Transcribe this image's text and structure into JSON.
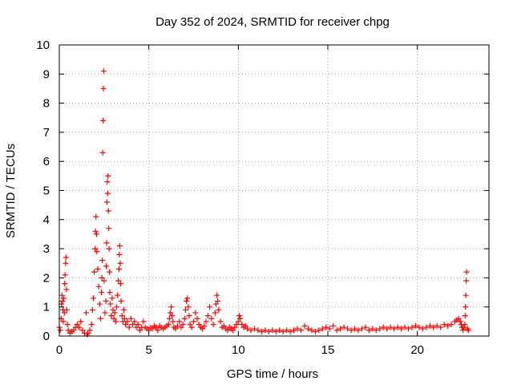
{
  "chart_data": {
    "type": "scatter",
    "title": "Day 352 of 2024, SRMTID for receiver chpg",
    "xlabel": "GPS time / hours",
    "ylabel": "SRMTID / TECUs",
    "xlim": [
      0,
      24
    ],
    "ylim": [
      0,
      10
    ],
    "xticks": [
      0,
      5,
      10,
      15,
      20
    ],
    "yticks": [
      0,
      1,
      2,
      3,
      4,
      5,
      6,
      7,
      8,
      9,
      10
    ],
    "grid": true,
    "legend": "none",
    "series": [
      {
        "name": "SRMTID",
        "marker": "+",
        "color": "#ff0000",
        "points": [
          [
            0.0,
            0.3
          ],
          [
            0.05,
            0.2
          ],
          [
            0.1,
            0.6
          ],
          [
            0.12,
            1.1
          ],
          [
            0.15,
            1.4
          ],
          [
            0.18,
            1.2
          ],
          [
            0.2,
            0.9
          ],
          [
            0.22,
            0.5
          ],
          [
            0.25,
            1.3
          ],
          [
            0.28,
            0.8
          ],
          [
            0.3,
            1.8
          ],
          [
            0.32,
            2.1
          ],
          [
            0.35,
            2.5
          ],
          [
            0.37,
            2.7
          ],
          [
            0.4,
            1.6
          ],
          [
            0.42,
            0.9
          ],
          [
            0.45,
            0.4
          ],
          [
            0.5,
            0.2
          ],
          [
            0.6,
            0.1
          ],
          [
            0.7,
            0.15
          ],
          [
            0.8,
            0.2
          ],
          [
            0.9,
            0.3
          ],
          [
            1.0,
            0.4
          ],
          [
            1.1,
            0.3
          ],
          [
            1.2,
            0.5
          ],
          [
            1.3,
            0.2
          ],
          [
            1.4,
            0.1
          ],
          [
            1.5,
            0.8
          ],
          [
            1.55,
            0.05
          ],
          [
            1.6,
            0.1
          ],
          [
            1.7,
            0.2
          ],
          [
            1.8,
            0.4
          ],
          [
            1.85,
            0.9
          ],
          [
            1.9,
            1.3
          ],
          [
            1.95,
            2.2
          ],
          [
            2.0,
            3.0
          ],
          [
            2.02,
            3.6
          ],
          [
            2.05,
            4.1
          ],
          [
            2.08,
            3.5
          ],
          [
            2.1,
            2.9
          ],
          [
            2.15,
            2.3
          ],
          [
            2.2,
            1.7
          ],
          [
            2.25,
            1.1
          ],
          [
            2.3,
            0.6
          ],
          [
            2.35,
            1.5
          ],
          [
            2.38,
            2.0
          ],
          [
            2.4,
            2.6
          ],
          [
            2.42,
            6.3
          ],
          [
            2.44,
            7.4
          ],
          [
            2.46,
            8.5
          ],
          [
            2.48,
            9.1
          ],
          [
            2.5,
            1.9
          ],
          [
            2.55,
            0.8
          ],
          [
            2.6,
            1.2
          ],
          [
            2.62,
            2.4
          ],
          [
            2.64,
            3.2
          ],
          [
            2.66,
            4.6
          ],
          [
            2.68,
            5.3
          ],
          [
            2.7,
            4.9
          ],
          [
            2.72,
            5.5
          ],
          [
            2.74,
            4.3
          ],
          [
            2.76,
            3.7
          ],
          [
            2.78,
            3.0
          ],
          [
            2.8,
            2.2
          ],
          [
            2.82,
            1.5
          ],
          [
            2.85,
            1.1
          ],
          [
            2.9,
            0.7
          ],
          [
            2.95,
            1.3
          ],
          [
            3.0,
            0.9
          ],
          [
            3.05,
            0.6
          ],
          [
            3.1,
            0.8
          ],
          [
            3.15,
            0.5
          ],
          [
            3.2,
            1.0
          ],
          [
            3.25,
            1.4
          ],
          [
            3.3,
            1.9
          ],
          [
            3.33,
            2.3
          ],
          [
            3.35,
            2.8
          ],
          [
            3.37,
            3.1
          ],
          [
            3.4,
            2.5
          ],
          [
            3.42,
            1.8
          ],
          [
            3.45,
            1.2
          ],
          [
            3.5,
            0.7
          ],
          [
            3.55,
            0.5
          ],
          [
            3.6,
            0.9
          ],
          [
            3.65,
            0.6
          ],
          [
            3.7,
            0.4
          ],
          [
            3.8,
            0.5
          ],
          [
            3.9,
            0.3
          ],
          [
            4.0,
            0.6
          ],
          [
            4.1,
            0.4
          ],
          [
            4.2,
            0.5
          ],
          [
            4.3,
            0.3
          ],
          [
            4.4,
            0.4
          ],
          [
            4.5,
            0.2
          ],
          [
            4.6,
            0.3
          ],
          [
            4.7,
            0.5
          ],
          [
            4.8,
            0.3
          ],
          [
            4.9,
            0.25
          ],
          [
            5.0,
            0.2
          ],
          [
            5.1,
            0.3
          ],
          [
            5.2,
            0.25
          ],
          [
            5.3,
            0.35
          ],
          [
            5.4,
            0.3
          ],
          [
            5.5,
            0.2
          ],
          [
            5.6,
            0.35
          ],
          [
            5.7,
            0.3
          ],
          [
            5.8,
            0.25
          ],
          [
            5.9,
            0.3
          ],
          [
            6.0,
            0.35
          ],
          [
            6.1,
            0.4
          ],
          [
            6.15,
            0.6
          ],
          [
            6.2,
            0.8
          ],
          [
            6.25,
            1.0
          ],
          [
            6.3,
            0.7
          ],
          [
            6.35,
            0.5
          ],
          [
            6.4,
            0.3
          ],
          [
            6.5,
            0.25
          ],
          [
            6.6,
            0.35
          ],
          [
            6.7,
            0.5
          ],
          [
            6.8,
            0.3
          ],
          [
            6.9,
            0.4
          ],
          [
            7.0,
            0.6
          ],
          [
            7.05,
            0.9
          ],
          [
            7.1,
            1.2
          ],
          [
            7.15,
            1.3
          ],
          [
            7.2,
            1.0
          ],
          [
            7.25,
            0.7
          ],
          [
            7.3,
            0.4
          ],
          [
            7.4,
            0.3
          ],
          [
            7.5,
            0.5
          ],
          [
            7.6,
            0.8
          ],
          [
            7.7,
            0.6
          ],
          [
            7.8,
            0.4
          ],
          [
            7.9,
            0.3
          ],
          [
            8.0,
            0.25
          ],
          [
            8.1,
            0.35
          ],
          [
            8.2,
            0.5
          ],
          [
            8.3,
            0.7
          ],
          [
            8.4,
            1.0
          ],
          [
            8.5,
            0.6
          ],
          [
            8.6,
            0.4
          ],
          [
            8.7,
            0.8
          ],
          [
            8.75,
            1.1
          ],
          [
            8.8,
            1.4
          ],
          [
            8.85,
            1.2
          ],
          [
            8.9,
            0.9
          ],
          [
            9.0,
            0.5
          ],
          [
            9.1,
            0.3
          ],
          [
            9.2,
            0.35
          ],
          [
            9.3,
            0.25
          ],
          [
            9.4,
            0.2
          ],
          [
            9.5,
            0.3
          ],
          [
            9.6,
            0.25
          ],
          [
            9.7,
            0.2
          ],
          [
            9.8,
            0.3
          ],
          [
            9.9,
            0.4
          ],
          [
            10.0,
            0.5
          ],
          [
            10.05,
            0.7
          ],
          [
            10.1,
            0.6
          ],
          [
            10.2,
            0.4
          ],
          [
            10.3,
            0.3
          ],
          [
            10.4,
            0.35
          ],
          [
            10.5,
            0.25
          ],
          [
            10.7,
            0.2
          ],
          [
            10.9,
            0.25
          ],
          [
            11.1,
            0.2
          ],
          [
            11.3,
            0.15
          ],
          [
            11.5,
            0.2
          ],
          [
            11.7,
            0.15
          ],
          [
            11.9,
            0.2
          ],
          [
            12.1,
            0.15
          ],
          [
            12.3,
            0.2
          ],
          [
            12.5,
            0.15
          ],
          [
            12.7,
            0.2
          ],
          [
            12.9,
            0.15
          ],
          [
            13.1,
            0.2
          ],
          [
            13.3,
            0.25
          ],
          [
            13.5,
            0.2
          ],
          [
            13.7,
            0.35
          ],
          [
            13.9,
            0.25
          ],
          [
            14.1,
            0.2
          ],
          [
            14.3,
            0.15
          ],
          [
            14.5,
            0.2
          ],
          [
            14.7,
            0.25
          ],
          [
            14.9,
            0.3
          ],
          [
            15.1,
            0.25
          ],
          [
            15.3,
            0.35
          ],
          [
            15.5,
            0.2
          ],
          [
            15.7,
            0.25
          ],
          [
            15.9,
            0.3
          ],
          [
            16.1,
            0.25
          ],
          [
            16.3,
            0.2
          ],
          [
            16.5,
            0.25
          ],
          [
            16.7,
            0.2
          ],
          [
            16.9,
            0.25
          ],
          [
            17.1,
            0.3
          ],
          [
            17.3,
            0.2
          ],
          [
            17.5,
            0.25
          ],
          [
            17.7,
            0.2
          ],
          [
            17.9,
            0.25
          ],
          [
            18.1,
            0.3
          ],
          [
            18.3,
            0.25
          ],
          [
            18.5,
            0.3
          ],
          [
            18.7,
            0.25
          ],
          [
            18.9,
            0.3
          ],
          [
            19.1,
            0.25
          ],
          [
            19.3,
            0.3
          ],
          [
            19.5,
            0.25
          ],
          [
            19.7,
            0.3
          ],
          [
            19.9,
            0.35
          ],
          [
            20.1,
            0.3
          ],
          [
            20.3,
            0.25
          ],
          [
            20.5,
            0.3
          ],
          [
            20.7,
            0.35
          ],
          [
            20.9,
            0.3
          ],
          [
            21.1,
            0.35
          ],
          [
            21.3,
            0.3
          ],
          [
            21.5,
            0.4
          ],
          [
            21.7,
            0.35
          ],
          [
            21.9,
            0.4
          ],
          [
            22.1,
            0.5
          ],
          [
            22.2,
            0.55
          ],
          [
            22.3,
            0.6
          ],
          [
            22.4,
            0.5
          ],
          [
            22.45,
            0.4
          ],
          [
            22.5,
            0.3
          ],
          [
            22.55,
            0.2
          ],
          [
            22.6,
            0.3
          ],
          [
            22.65,
            0.4
          ],
          [
            22.67,
            0.7
          ],
          [
            22.69,
            1.0
          ],
          [
            22.71,
            1.4
          ],
          [
            22.73,
            1.9
          ],
          [
            22.75,
            2.2
          ],
          [
            22.8,
            0.25
          ],
          [
            22.85,
            0.2
          ]
        ]
      }
    ]
  }
}
